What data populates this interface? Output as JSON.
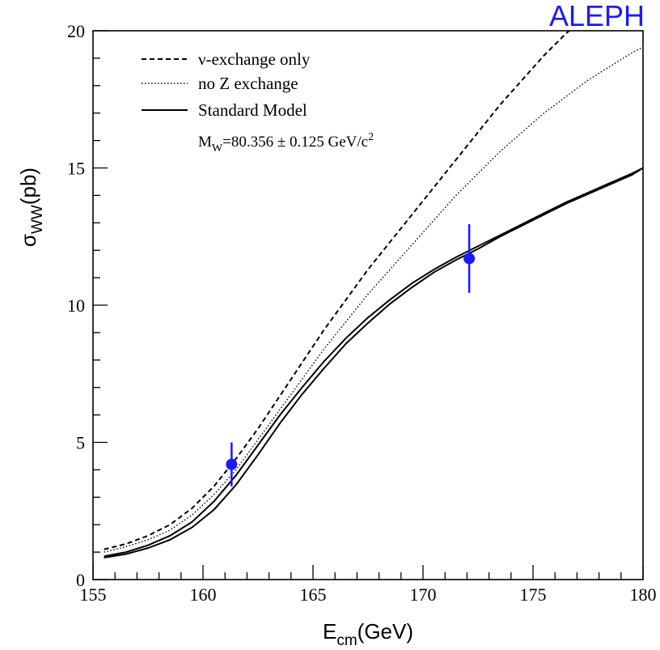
{
  "chart_data": {
    "type": "line",
    "title": "",
    "brand_label": "ALEPH",
    "xlabel": {
      "main": "E",
      "sub": "cm",
      "rest": "(GeV)"
    },
    "ylabel": {
      "main": "σ",
      "sub": "WW",
      "rest": "(pb)"
    },
    "xlim": [
      155,
      180
    ],
    "ylim": [
      0,
      20
    ],
    "x_ticks": [
      "155",
      "160",
      "165",
      "170",
      "175",
      "180"
    ],
    "y_ticks": [
      "0",
      "5",
      "10",
      "15",
      "20"
    ],
    "grid": false,
    "legend_position": "top-left",
    "legend": [
      {
        "label": "ν-exchange only",
        "style": "dashed"
      },
      {
        "label": "no Z exchange",
        "style": "dotted"
      },
      {
        "label": "Standard Model",
        "style": "solid"
      }
    ],
    "annotation": {
      "prefix": "M",
      "sub": "W",
      "mid": "=80.356 ± 0.125 GeV/c",
      "sup": "2"
    },
    "series": [
      {
        "name": "ν-exchange only",
        "style": "dashed",
        "color": "#000000",
        "x": [
          155.5,
          156.5,
          157.5,
          158.5,
          159.5,
          160.5,
          161.5,
          162.5,
          163.5,
          164.5,
          165.5,
          166.5,
          167.5,
          168.5,
          169.5,
          170.5,
          171.5,
          172.5,
          173.5,
          174.5,
          175.5,
          176.5,
          177.5
        ],
        "y": [
          1.1,
          1.3,
          1.6,
          2.0,
          2.6,
          3.4,
          4.4,
          5.5,
          6.7,
          7.9,
          9.1,
          10.2,
          11.3,
          12.3,
          13.3,
          14.3,
          15.3,
          16.3,
          17.3,
          18.2,
          19.1,
          19.9,
          20.6
        ]
      },
      {
        "name": "no Z exchange",
        "style": "dotted",
        "color": "#000000",
        "x": [
          155.5,
          156.5,
          157.5,
          158.5,
          159.5,
          160.5,
          161.5,
          162.5,
          163.5,
          164.5,
          165.5,
          166.5,
          167.5,
          168.5,
          169.5,
          170.5,
          171.5,
          172.5,
          173.5,
          174.5,
          175.5,
          176.5,
          177.5,
          178.5,
          179.5,
          180
        ],
        "y": [
          1.0,
          1.2,
          1.45,
          1.8,
          2.35,
          3.1,
          4.0,
          5.1,
          6.2,
          7.3,
          8.4,
          9.4,
          10.4,
          11.3,
          12.2,
          13.1,
          14.0,
          14.8,
          15.6,
          16.3,
          17.0,
          17.6,
          18.2,
          18.7,
          19.2,
          19.4
        ]
      },
      {
        "name": "Standard Model",
        "style": "solid",
        "color": "#000000",
        "x": [
          155.5,
          156.5,
          157.5,
          158.5,
          159.5,
          160.5,
          161.5,
          162.5,
          163.5,
          164.5,
          165.5,
          166.5,
          167.5,
          168.5,
          169.5,
          170.5,
          171.5,
          172.5,
          173.5,
          174.5,
          175.5,
          176.5,
          177.5,
          178.5,
          179.5,
          180
        ],
        "y": [
          0.85,
          1.0,
          1.25,
          1.6,
          2.1,
          2.85,
          3.8,
          4.9,
          6.0,
          7.0,
          7.95,
          8.8,
          9.55,
          10.2,
          10.8,
          11.3,
          11.75,
          12.15,
          12.55,
          12.95,
          13.35,
          13.75,
          14.1,
          14.45,
          14.8,
          15.0
        ]
      },
      {
        "name": "",
        "style": "solid",
        "color": "#000000",
        "x": [
          155.5,
          156.5,
          157.5,
          158.5,
          159.5,
          160.5,
          161.5,
          162.5,
          163.5,
          164.5,
          165.5,
          166.5,
          167.5,
          168.5,
          169.5,
          170.5,
          171.5,
          172.5,
          173.5,
          174.5,
          175.5,
          176.5,
          177.5,
          178.5,
          179.5,
          180
        ],
        "y": [
          0.8,
          0.93,
          1.15,
          1.45,
          1.9,
          2.55,
          3.45,
          4.55,
          5.7,
          6.75,
          7.7,
          8.6,
          9.35,
          10.05,
          10.65,
          11.2,
          11.65,
          12.05,
          12.5,
          12.9,
          13.3,
          13.7,
          14.05,
          14.4,
          14.75,
          15.0
        ]
      }
    ],
    "points": {
      "color": "#1a1aff",
      "x": [
        161.3,
        172.1
      ],
      "y": [
        4.2,
        11.7
      ],
      "err": [
        0.8,
        1.25
      ]
    }
  }
}
